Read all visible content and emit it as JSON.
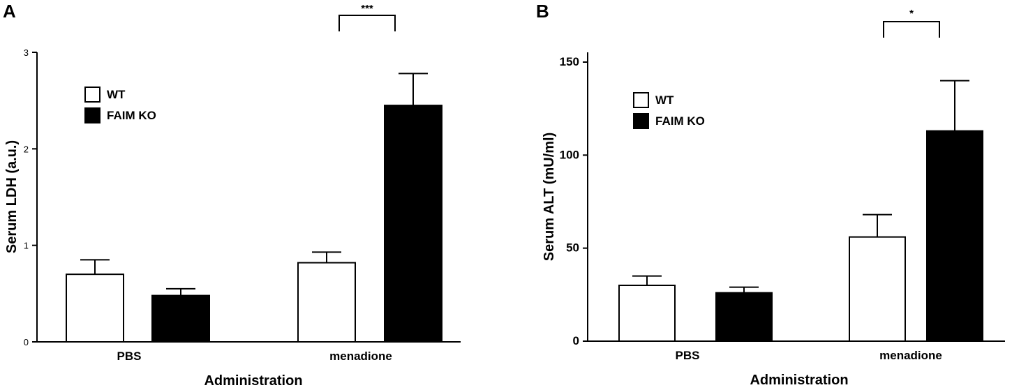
{
  "chart_data": [
    {
      "panel": "A",
      "type": "bar",
      "categories": [
        "PBS",
        "menadione"
      ],
      "series": [
        {
          "name": "WT",
          "values": [
            0.7,
            0.82
          ],
          "errors": [
            0.15,
            0.11
          ],
          "color": "#ffffff"
        },
        {
          "name": "FAIM KO",
          "values": [
            0.48,
            2.45
          ],
          "errors": [
            0.07,
            0.33
          ],
          "color": "#000000"
        }
      ],
      "ylabel": "Serum LDH  (a.u.)",
      "xlabel": "Administration",
      "ylim": [
        0,
        3
      ],
      "yticks": [
        "0",
        "1",
        "2",
        "3"
      ],
      "legend_position": "top-left",
      "significance": {
        "category": "menadione",
        "label": "***"
      },
      "grid": false
    },
    {
      "panel": "B",
      "type": "bar",
      "categories": [
        "PBS",
        "menadione"
      ],
      "series": [
        {
          "name": "WT",
          "values": [
            30,
            56
          ],
          "errors": [
            5,
            12
          ],
          "color": "#ffffff"
        },
        {
          "name": "FAIM KO",
          "values": [
            26,
            113
          ],
          "errors": [
            3,
            27
          ],
          "color": "#000000"
        }
      ],
      "ylabel": "Serum ALT  (mU/ml)",
      "xlabel": "Administration",
      "ylim": [
        0,
        150
      ],
      "yticks": [
        "0",
        "50",
        "100",
        "150"
      ],
      "legend_position": "top-left",
      "significance": {
        "category": "menadione",
        "label": "*"
      },
      "grid": false
    }
  ]
}
